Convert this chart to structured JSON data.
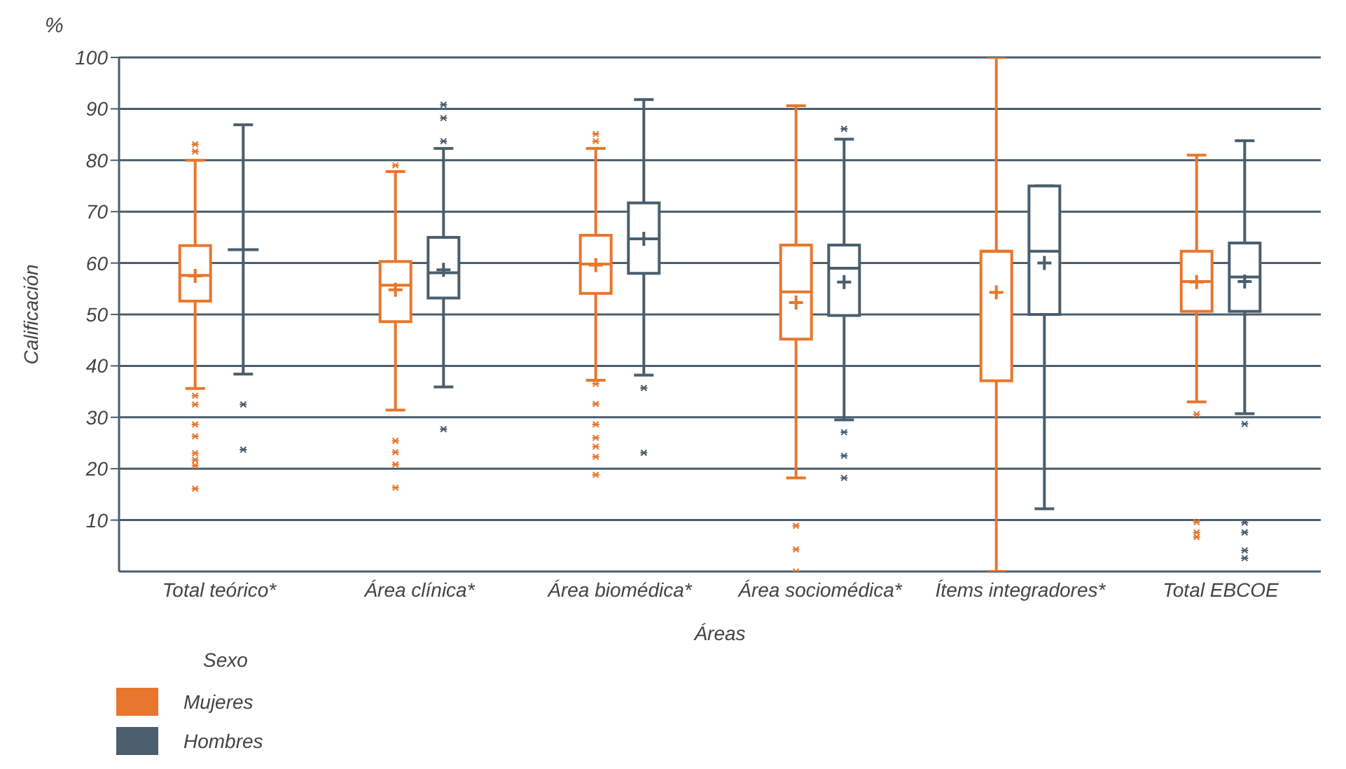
{
  "chart_data": {
    "type": "box",
    "ylabel": "Calificación",
    "xlabel": "Áreas",
    "legend_title": "Sexo",
    "annotations": [
      "%"
    ],
    "categories": [
      "Total teórico*",
      "Área clínica*",
      "Área biomédica*",
      "Área sociomédica*",
      "Ítems integradores*",
      "Total EBCOE"
    ],
    "ylim": [
      0,
      100
    ],
    "yticks": [
      10,
      20,
      30,
      40,
      50,
      60,
      70,
      80,
      90,
      100
    ],
    "grid": "y",
    "legend": "bottom left",
    "series": [
      {
        "name": "Mujeres",
        "color": "#e8762c",
        "boxes": [
          {
            "low": 35.6,
            "q1": 52.6,
            "median": 57.6,
            "q3": 63.4,
            "high": 80,
            "mean": 57.5,
            "outliers": [
              83.1,
              81.7,
              34.2,
              32.5,
              28.6,
              26.3,
              23,
              21.7,
              20.6,
              16.1
            ]
          },
          {
            "low": 31.4,
            "q1": 48.6,
            "median": 55.7,
            "q3": 60.3,
            "high": 77.8,
            "mean": 54.8,
            "outliers": [
              79,
              25.4,
              23.2,
              20.8,
              16.3
            ]
          },
          {
            "low": 37.2,
            "q1": 54.1,
            "median": 59.8,
            "q3": 65.4,
            "high": 82.3,
            "mean": 59.6,
            "outliers": [
              85.1,
              83.7,
              36.5,
              32.6,
              28.6,
              26,
              24.3,
              22.3,
              18.8
            ]
          },
          {
            "low": 18.2,
            "q1": 45.2,
            "median": 54.4,
            "q3": 63.5,
            "high": 90.6,
            "mean": 52.3,
            "outliers": [
              8.9,
              4.3,
              0
            ]
          },
          {
            "low": 0,
            "q1": 37.1,
            "median": 62.3,
            "q3": 62.3,
            "high": 100,
            "mean": 54.3
          },
          {
            "low": 33,
            "q1": 50.6,
            "median": 56.4,
            "q3": 62.3,
            "high": 81,
            "mean": 56.3,
            "outliers": [
              30.6,
              9.6,
              7.6,
              6.7
            ]
          }
        ]
      },
      {
        "name": "Hombres",
        "color": "#4a5e6d",
        "boxes": [
          {
            "low": 38.4,
            "q1": 62.6,
            "median": 62.6,
            "q3": 62.6,
            "high": 86.9,
            "outliers": [
              32.5,
              23.7
            ]
          },
          {
            "low": 35.9,
            "q1": 53.2,
            "median": 58.1,
            "q3": 65,
            "high": 82.3,
            "mean": 58.7,
            "outliers": [
              90.8,
              88.2,
              83.7,
              27.7
            ]
          },
          {
            "low": 38.2,
            "q1": 58,
            "median": 64.7,
            "q3": 71.7,
            "high": 91.8,
            "mean": 64.7,
            "outliers": [
              35.7,
              23.1
            ]
          },
          {
            "low": 29.5,
            "q1": 49.8,
            "median": 59,
            "q3": 63.5,
            "high": 84.1,
            "mean": 56.3,
            "outliers": [
              86.1,
              27.1,
              22.5,
              18.2
            ]
          },
          {
            "low": 12.2,
            "q1": 50,
            "median": 62.3,
            "q3": 75,
            "high": 75,
            "mean": 60
          },
          {
            "low": 30.7,
            "q1": 50.6,
            "median": 57.3,
            "q3": 63.9,
            "high": 83.8,
            "mean": 56.4,
            "outliers": [
              28.7,
              9.5,
              7.6,
              4.1,
              2.6
            ]
          }
        ]
      }
    ]
  }
}
